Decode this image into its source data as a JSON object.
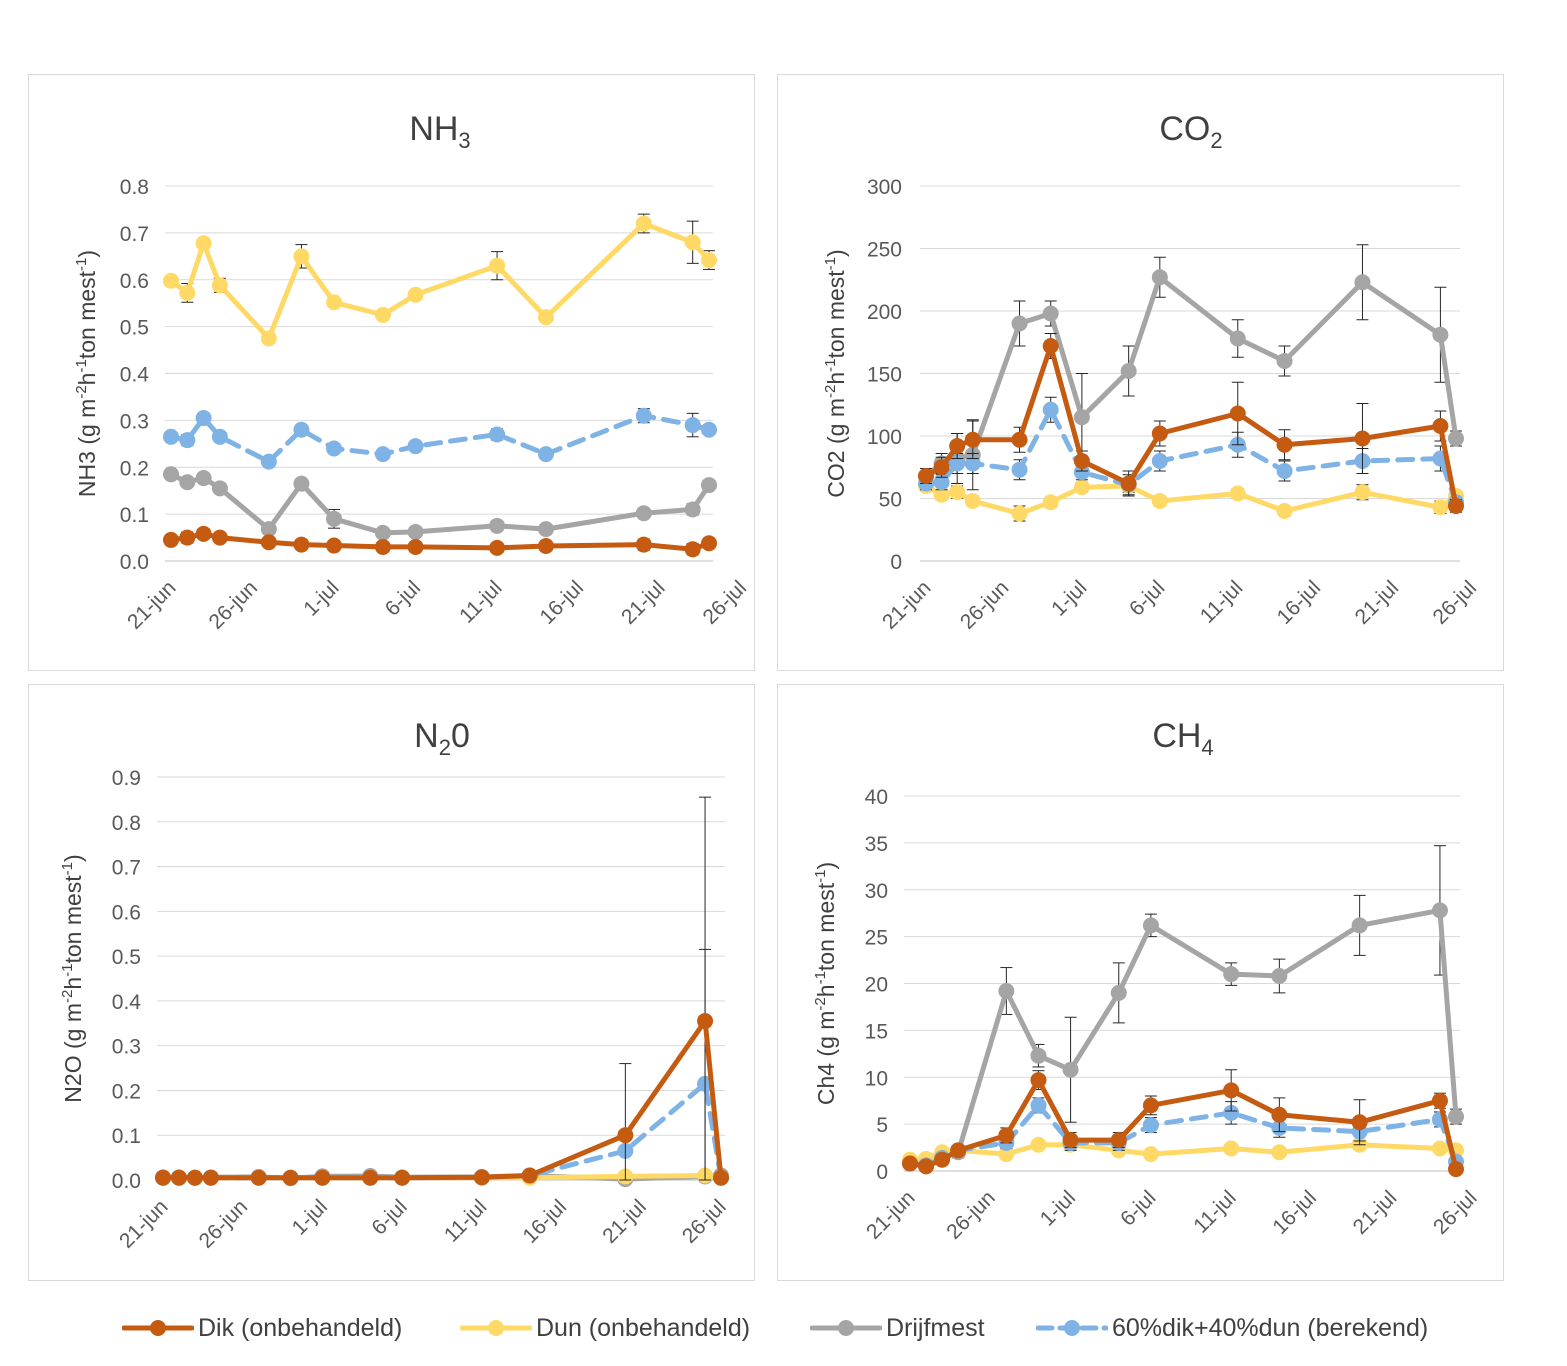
{
  "legend": [
    {
      "name": "Dik (onbehandeld)",
      "color": "#c55a11",
      "dash": false
    },
    {
      "name": "Dun (onbehandeld)",
      "color": "#ffd966",
      "dash": false
    },
    {
      "name": "Drijfmest",
      "color": "#a5a5a5",
      "dash": false
    },
    {
      "name": "60%dik+40%dun (berekend)",
      "color": "#7fb2e5",
      "dash": true
    }
  ],
  "chart_data": [
    {
      "type": "line",
      "title": {
        "base": "NH",
        "sub": "3",
        "after": ""
      },
      "ylabel": {
        "pre": "NH3 (g m",
        "s1": "-2",
        "mid": "h",
        "s2": "-1",
        "post": "ton mest",
        "s3": "-1",
        "end": ")"
      },
      "ylim": [
        0,
        0.8
      ],
      "yticks": [
        "0.0",
        "0.1",
        "0.2",
        "0.3",
        "0.4",
        "0.5",
        "0.6",
        "0.7",
        "0.8"
      ],
      "xtick_labels": [
        "21-jun",
        "26-jun",
        "1-jul",
        "6-jul",
        "11-jul",
        "16-jul",
        "21-jul",
        "26-jul"
      ],
      "x_days": [
        0,
        1,
        2,
        3,
        6,
        8,
        10,
        13,
        15,
        20,
        23,
        29,
        32,
        33
      ],
      "series": [
        {
          "name": "Dik (onbehandeld)",
          "values": [
            0.045,
            0.05,
            0.058,
            0.05,
            0.04,
            0.035,
            0.033,
            0.03,
            0.03,
            0.028,
            0.032,
            0.035,
            0.025,
            0.038
          ],
          "err": [
            0.01,
            0.012,
            0.01,
            0.008,
            0.006,
            0.005,
            0.005,
            0.004,
            0.004,
            0.004,
            0.005,
            0.012,
            0.012,
            0.005
          ]
        },
        {
          "name": "Dun (onbehandeld)",
          "values": [
            0.598,
            0.572,
            0.678,
            0.588,
            0.475,
            0.65,
            0.552,
            0.525,
            0.568,
            0.63,
            0.52,
            0.72,
            0.68,
            0.642
          ],
          "err": [
            0.01,
            0.02,
            0.01,
            0.015,
            0.008,
            0.025,
            0.01,
            0.008,
            0.01,
            0.03,
            0.008,
            0.02,
            0.045,
            0.02
          ]
        },
        {
          "name": "Drijfmest",
          "values": [
            0.185,
            0.168,
            0.177,
            0.155,
            0.068,
            0.165,
            0.09,
            0.06,
            0.062,
            0.075,
            0.068,
            0.102,
            0.11,
            0.162
          ],
          "err": [
            0.005,
            0.006,
            0.005,
            0.005,
            0.006,
            0.005,
            0.02,
            0.006,
            0.005,
            0.006,
            0.006,
            0.006,
            0.012,
            0.005
          ]
        },
        {
          "name": "60%dik+40%dun (berekend)",
          "values": [
            0.265,
            0.258,
            0.305,
            0.265,
            0.212,
            0.28,
            0.24,
            0.228,
            0.245,
            0.27,
            0.228,
            0.31,
            0.29,
            0.28
          ],
          "err": [
            0.01,
            0.012,
            0.006,
            0.008,
            0.006,
            0.006,
            0.005,
            0.005,
            0.005,
            0.012,
            0.005,
            0.015,
            0.025,
            0.008
          ]
        }
      ]
    },
    {
      "type": "line",
      "title": {
        "base": "CO",
        "sub": "2",
        "after": ""
      },
      "ylabel": {
        "pre": "CO2 (g m",
        "s1": "-2",
        "mid": "h",
        "s2": "-1",
        "post": "ton mest",
        "s3": "-1",
        "end": ")"
      },
      "ylim": [
        0,
        300
      ],
      "yticks": [
        "0",
        "50",
        "100",
        "150",
        "200",
        "250",
        "300"
      ],
      "xtick_labels": [
        "21-jun",
        "26-jun",
        "1-jul",
        "6-jul",
        "11-jul",
        "16-jul",
        "21-jul",
        "26-jul"
      ],
      "x_days": [
        0,
        1,
        2,
        3,
        6,
        8,
        10,
        13,
        15,
        20,
        23,
        28,
        33,
        34
      ],
      "series": [
        {
          "name": "Dik (onbehandeld)",
          "values": [
            68,
            75,
            92,
            97,
            97,
            172,
            80,
            62,
            102,
            118,
            93,
            98,
            108,
            44
          ],
          "err": [
            6,
            8,
            10,
            15,
            10,
            10,
            8,
            10,
            10,
            25,
            12,
            28,
            12,
            5
          ]
        },
        {
          "name": "Dun (onbehandeld)",
          "values": [
            60,
            53,
            55,
            48,
            38,
            47,
            59,
            60,
            48,
            54,
            40,
            55,
            43,
            52
          ],
          "err": [
            4,
            4,
            5,
            4,
            6,
            4,
            4,
            5,
            4,
            4,
            4,
            6,
            5,
            4
          ]
        },
        {
          "name": "Drijfmest",
          "values": [
            68,
            78,
            82,
            85,
            190,
            198,
            115,
            152,
            227,
            178,
            160,
            223,
            181,
            98
          ],
          "err": [
            6,
            8,
            20,
            28,
            18,
            10,
            35,
            20,
            16,
            15,
            12,
            30,
            38,
            6
          ]
        },
        {
          "name": "60%dik+40%dun (berekend)",
          "values": [
            62,
            63,
            78,
            78,
            73,
            121,
            71,
            61,
            80,
            93,
            72,
            80,
            82,
            47
          ],
          "err": [
            5,
            6,
            8,
            8,
            8,
            10,
            6,
            8,
            8,
            10,
            8,
            10,
            10,
            4
          ]
        }
      ]
    },
    {
      "type": "line",
      "title": {
        "base": "N",
        "sub": "2",
        "after": "0"
      },
      "ylabel": {
        "pre": "N2O (g m",
        "s1": "-2",
        "mid": "h",
        "s2": "-1",
        "post": "ton mest",
        "s3": "-1",
        "end": ")"
      },
      "ylim": [
        0,
        0.9
      ],
      "yticks": [
        "0.0",
        "0.1",
        "0.2",
        "0.3",
        "0.4",
        "0.5",
        "0.6",
        "0.7",
        "0.8",
        "0.9"
      ],
      "xtick_labels": [
        "21-jun",
        "26-jun",
        "1-jul",
        "6-jul",
        "11-jul",
        "16-jul",
        "21-jul",
        "26-jul"
      ],
      "x_days": [
        0,
        1,
        2,
        3,
        6,
        8,
        10,
        13,
        15,
        20,
        23,
        29,
        34,
        35
      ],
      "series": [
        {
          "name": "Dik (onbehandeld)",
          "values": [
            0.005,
            0.005,
            0.005,
            0.005,
            0.005,
            0.005,
            0.005,
            0.005,
            0.005,
            0.006,
            0.01,
            0.1,
            0.355,
            0.005
          ],
          "err": [
            0,
            0,
            0,
            0,
            0,
            0,
            0,
            0,
            0,
            0,
            0,
            0.16,
            0.5,
            0
          ]
        },
        {
          "name": "Dun (onbehandeld)",
          "values": [
            0.005,
            0.005,
            0.005,
            0.005,
            0.005,
            0.005,
            0.005,
            0.005,
            0.005,
            0.005,
            0.005,
            0.008,
            0.01,
            0.005
          ],
          "err": [
            0,
            0,
            0,
            0,
            0,
            0,
            0,
            0,
            0,
            0,
            0,
            0,
            0,
            0
          ]
        },
        {
          "name": "Drijfmest",
          "values": [
            0.006,
            0.006,
            0.005,
            0.006,
            0.007,
            0.004,
            0.008,
            0.009,
            0.006,
            0.007,
            0.01,
            0.002,
            0.008,
            0.01
          ],
          "err": [
            0,
            0,
            0,
            0,
            0,
            0,
            0,
            0,
            0,
            0,
            0,
            0,
            0,
            0
          ]
        },
        {
          "name": "60%dik+40%dun (berekend)",
          "values": [
            0.005,
            0.005,
            0.005,
            0.005,
            0.005,
            0.005,
            0.005,
            0.005,
            0.005,
            0.006,
            0.01,
            0.065,
            0.215,
            0.005
          ],
          "err": [
            0,
            0,
            0,
            0,
            0,
            0,
            0,
            0,
            0,
            0,
            0,
            0,
            0.3,
            0
          ]
        }
      ]
    },
    {
      "type": "line",
      "title": {
        "base": "CH",
        "sub": "4",
        "after": ""
      },
      "ylabel": {
        "pre": "Ch4 (g m",
        "s1": "-2",
        "mid": "h",
        "s2": "-1",
        "post": "ton mest",
        "s3": "-1",
        "end": ")"
      },
      "ylim": [
        0,
        40
      ],
      "yticks": [
        "0",
        "5",
        "10",
        "15",
        "20",
        "25",
        "30",
        "35",
        "40"
      ],
      "xtick_labels": [
        "21-jun",
        "26-jun",
        "1-jul",
        "6-jul",
        "11-jul",
        "16-jul",
        "21-jul",
        "26-jul"
      ],
      "x_days": [
        0,
        1,
        2,
        3,
        6,
        8,
        10,
        13,
        15,
        20,
        23,
        28,
        33,
        34
      ],
      "series": [
        {
          "name": "Dik (onbehandeld)",
          "values": [
            0.8,
            0.5,
            1.2,
            2.2,
            3.8,
            9.7,
            3.3,
            3.3,
            7.0,
            8.6,
            6.0,
            5.2,
            7.5,
            0.2
          ],
          "err": [
            0.3,
            0.2,
            0.3,
            0.5,
            0.8,
            1.0,
            0.8,
            0.8,
            1.0,
            2.2,
            1.8,
            2.4,
            0.8,
            0.2
          ]
        },
        {
          "name": "Dun (onbehandeld)",
          "values": [
            1.2,
            1.3,
            2.0,
            2.2,
            1.8,
            2.8,
            2.8,
            2.2,
            1.8,
            2.4,
            2.0,
            2.8,
            2.4,
            2.2
          ],
          "err": [
            0.2,
            0.2,
            0.2,
            0.2,
            0.2,
            0.2,
            0.2,
            0.2,
            0.2,
            0.2,
            0.2,
            0.2,
            0.2,
            0.2
          ]
        },
        {
          "name": "Drijfmest",
          "values": [
            0.8,
            0.8,
            1.5,
            2.0,
            19.2,
            12.3,
            10.8,
            19.0,
            26.2,
            21.0,
            20.8,
            26.2,
            27.8,
            5.8
          ],
          "err": [
            0.4,
            0.4,
            0.5,
            0.6,
            2.5,
            1.2,
            5.6,
            3.2,
            1.2,
            1.2,
            1.8,
            3.2,
            6.9,
            0.8
          ]
        },
        {
          "name": "60%dik+40%dun (berekend)",
          "values": [
            0.8,
            0.6,
            1.4,
            2.2,
            3.0,
            7.0,
            3.0,
            3.0,
            4.9,
            6.2,
            4.6,
            4.2,
            5.5,
            1.0
          ],
          "err": [
            0.3,
            0.2,
            0.3,
            0.4,
            0.6,
            0.8,
            0.8,
            0.8,
            0.8,
            1.2,
            1.0,
            1.0,
            0.8,
            0.3
          ]
        }
      ]
    }
  ]
}
